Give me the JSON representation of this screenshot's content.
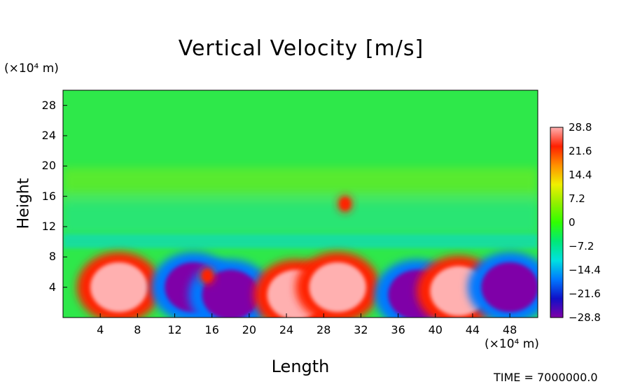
{
  "chart_data": {
    "type": "heatmap",
    "title": "Vertical Velocity [m/s]",
    "xlabel": "Length",
    "ylabel": "Height",
    "x_unit": "(×10⁴ m)",
    "y_unit": "(×10⁴ m)",
    "xlim": [
      0,
      51
    ],
    "ylim": [
      0,
      30
    ],
    "x_ticks": [
      "4",
      "8",
      "12",
      "16",
      "20",
      "24",
      "28",
      "32",
      "36",
      "40",
      "44",
      "48"
    ],
    "x_tick_values": [
      4,
      8,
      12,
      16,
      20,
      24,
      28,
      32,
      36,
      40,
      44,
      48
    ],
    "y_ticks": [
      "4",
      "8",
      "12",
      "16",
      "20",
      "24",
      "28"
    ],
    "y_tick_values": [
      4,
      8,
      12,
      16,
      20,
      24,
      28
    ],
    "colorbar": {
      "labels": [
        "28.8",
        "21.6",
        "14.4",
        "7.2",
        "0",
        "−7.2",
        "−14.4",
        "−21.6",
        "−28.8"
      ],
      "values": [
        28.8,
        21.6,
        14.4,
        7.2,
        0,
        -7.2,
        -14.4,
        -21.6,
        -28.8
      ],
      "vmin": -28.8,
      "vmax": 28.8,
      "colors": [
        "#7f00a8",
        "#1010c8",
        "#0078ff",
        "#00e0e0",
        "#00e878",
        "#30ff00",
        "#90f000",
        "#f0f000",
        "#ff9000",
        "#ff2000",
        "#ffb0b0"
      ]
    },
    "features": [
      {
        "x": 6,
        "y": 4,
        "value": 28.8
      },
      {
        "x": 14,
        "y": 4,
        "value": -28.8
      },
      {
        "x": 18,
        "y": 3,
        "value": -28.8
      },
      {
        "x": 25,
        "y": 3,
        "value": 28.8
      },
      {
        "x": 29.5,
        "y": 4,
        "value": 28.8
      },
      {
        "x": 38,
        "y": 3,
        "value": -28.8
      },
      {
        "x": 42.5,
        "y": 3.5,
        "value": 28.8
      },
      {
        "x": 48,
        "y": 4,
        "value": -28.8
      },
      {
        "x": 30.3,
        "y": 15,
        "value": 21.6
      },
      {
        "x": 15.5,
        "y": 5.5,
        "value": 21.6
      }
    ]
  },
  "footer": {
    "time": "TIME = 7000000.0"
  },
  "colors": {
    "background": "#ffffff",
    "field_base": "#2ee84a"
  }
}
